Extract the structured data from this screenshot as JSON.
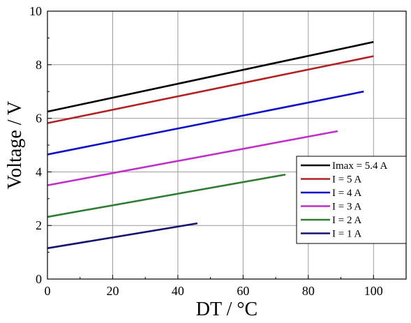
{
  "chart_data": {
    "type": "line",
    "xlabel": "DT / °C",
    "ylabel": "Voltage / V",
    "xlim": [
      0,
      110
    ],
    "ylim": [
      0,
      10
    ],
    "xticks": [
      0,
      20,
      40,
      60,
      80,
      100
    ],
    "yticks": [
      0,
      2,
      4,
      6,
      8,
      10
    ],
    "grid": true,
    "legend_position": "right",
    "series": [
      {
        "name": "Imax = 5.4 A",
        "color": "#000000",
        "x": [
          0,
          100
        ],
        "y": [
          6.25,
          8.85
        ]
      },
      {
        "name": "I = 5 A",
        "color": "#b22222",
        "x": [
          0,
          100
        ],
        "y": [
          5.82,
          8.32
        ]
      },
      {
        "name": "I = 4 A",
        "color": "#1010c8",
        "x": [
          0,
          97
        ],
        "y": [
          4.65,
          7.0
        ]
      },
      {
        "name": "I = 3 A",
        "color": "#c030c8",
        "x": [
          0,
          89
        ],
        "y": [
          3.5,
          5.52
        ]
      },
      {
        "name": "I = 2 A",
        "color": "#2e7d32",
        "x": [
          0,
          73
        ],
        "y": [
          2.32,
          3.9
        ]
      },
      {
        "name": "I = 1 A",
        "color": "#15156e",
        "x": [
          0,
          46
        ],
        "y": [
          1.15,
          2.08
        ]
      }
    ]
  }
}
